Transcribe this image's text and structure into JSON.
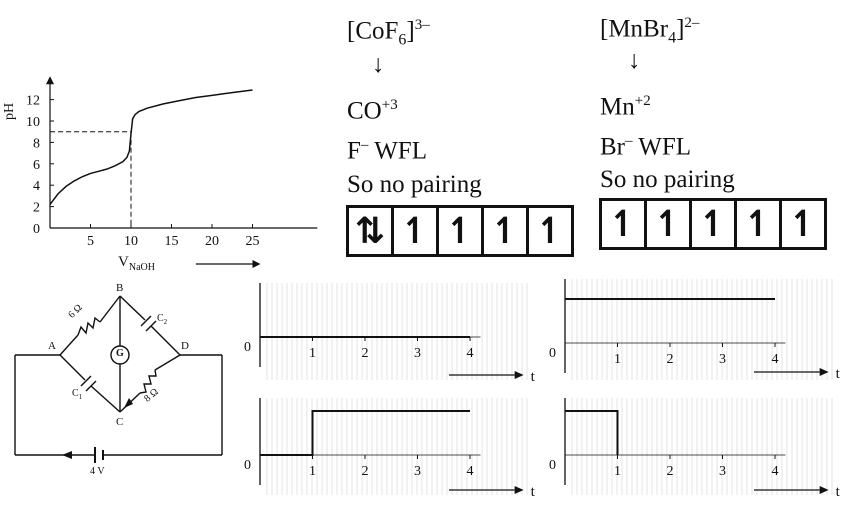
{
  "titration": {
    "y_axis_label": "pH",
    "x_axis_label": "V",
    "x_axis_sub": "NaOH",
    "y_ticks": [
      "0",
      "2",
      "4",
      "6",
      "8",
      "10",
      "12"
    ],
    "x_ticks": [
      "5",
      "10",
      "15",
      "20",
      "25"
    ]
  },
  "chart_data": {
    "type": "line",
    "ylabel": "pH",
    "xlabel": "VNaOH",
    "xlim": [
      0,
      33
    ],
    "ylim": [
      0,
      14
    ],
    "series": [
      {
        "x": [
          0,
          1,
          2,
          3,
          4,
          5,
          6,
          7,
          8,
          9,
          9.5,
          9.8,
          10,
          10.2,
          10.5,
          11,
          12,
          14,
          16,
          18,
          20,
          22,
          25
        ],
        "y": [
          2.2,
          3.2,
          3.9,
          4.4,
          4.8,
          5.1,
          5.3,
          5.5,
          5.8,
          6.2,
          6.6,
          7.2,
          8.8,
          10.2,
          10.6,
          10.9,
          11.2,
          11.6,
          11.9,
          12.2,
          12.4,
          12.6,
          12.9
        ]
      }
    ],
    "reference_lines": {
      "y": 9,
      "x": 10
    }
  },
  "complex1": {
    "formula": "[CoF",
    "sub": "6",
    "close": "]",
    "charge": "3–",
    "arrow": "↓",
    "ion": "CO",
    "ion_charge": "+3",
    "ligand": "F",
    "ligand_charge": "–",
    "ligand_type": " WFL",
    "note": "So no pairing",
    "orbitals": [
      "⇅",
      "↿",
      "↿",
      "↿",
      "↿"
    ]
  },
  "complex2": {
    "formula": "[MnBr",
    "sub": "4",
    "close": "]",
    "charge": "2–",
    "arrow": "↓",
    "ion": "Mn",
    "ion_charge": "+2",
    "ligand": "Br",
    "ligand_charge": "–",
    "ligand_type": " WFL",
    "note": "So no pairing",
    "orbitals": [
      "↿",
      "↿",
      "↿",
      "↿",
      "↿"
    ]
  },
  "circuit": {
    "node_a": "A",
    "node_b": "B",
    "node_c": "C",
    "node_d": "D",
    "r1": "6 Ω",
    "r2": "8 Ω",
    "c1": "C",
    "c1_sub": "1",
    "c2": "C",
    "c2_sub": "2",
    "galvanometer": "G",
    "battery": "4 V"
  },
  "graphs": {
    "origin": "0",
    "t_label": "t",
    "ticks": [
      "1",
      "2",
      "3",
      "4"
    ],
    "plots": [
      {
        "x": [
          0,
          4
        ],
        "y": [
          0,
          0
        ]
      },
      {
        "x": [
          0,
          4
        ],
        "y": [
          1,
          1
        ]
      },
      {
        "x": [
          0,
          1,
          1,
          4
        ],
        "y": [
          0,
          0,
          1,
          1
        ]
      },
      {
        "x": [
          0,
          1,
          1
        ],
        "y": [
          1,
          1,
          0
        ]
      }
    ]
  }
}
